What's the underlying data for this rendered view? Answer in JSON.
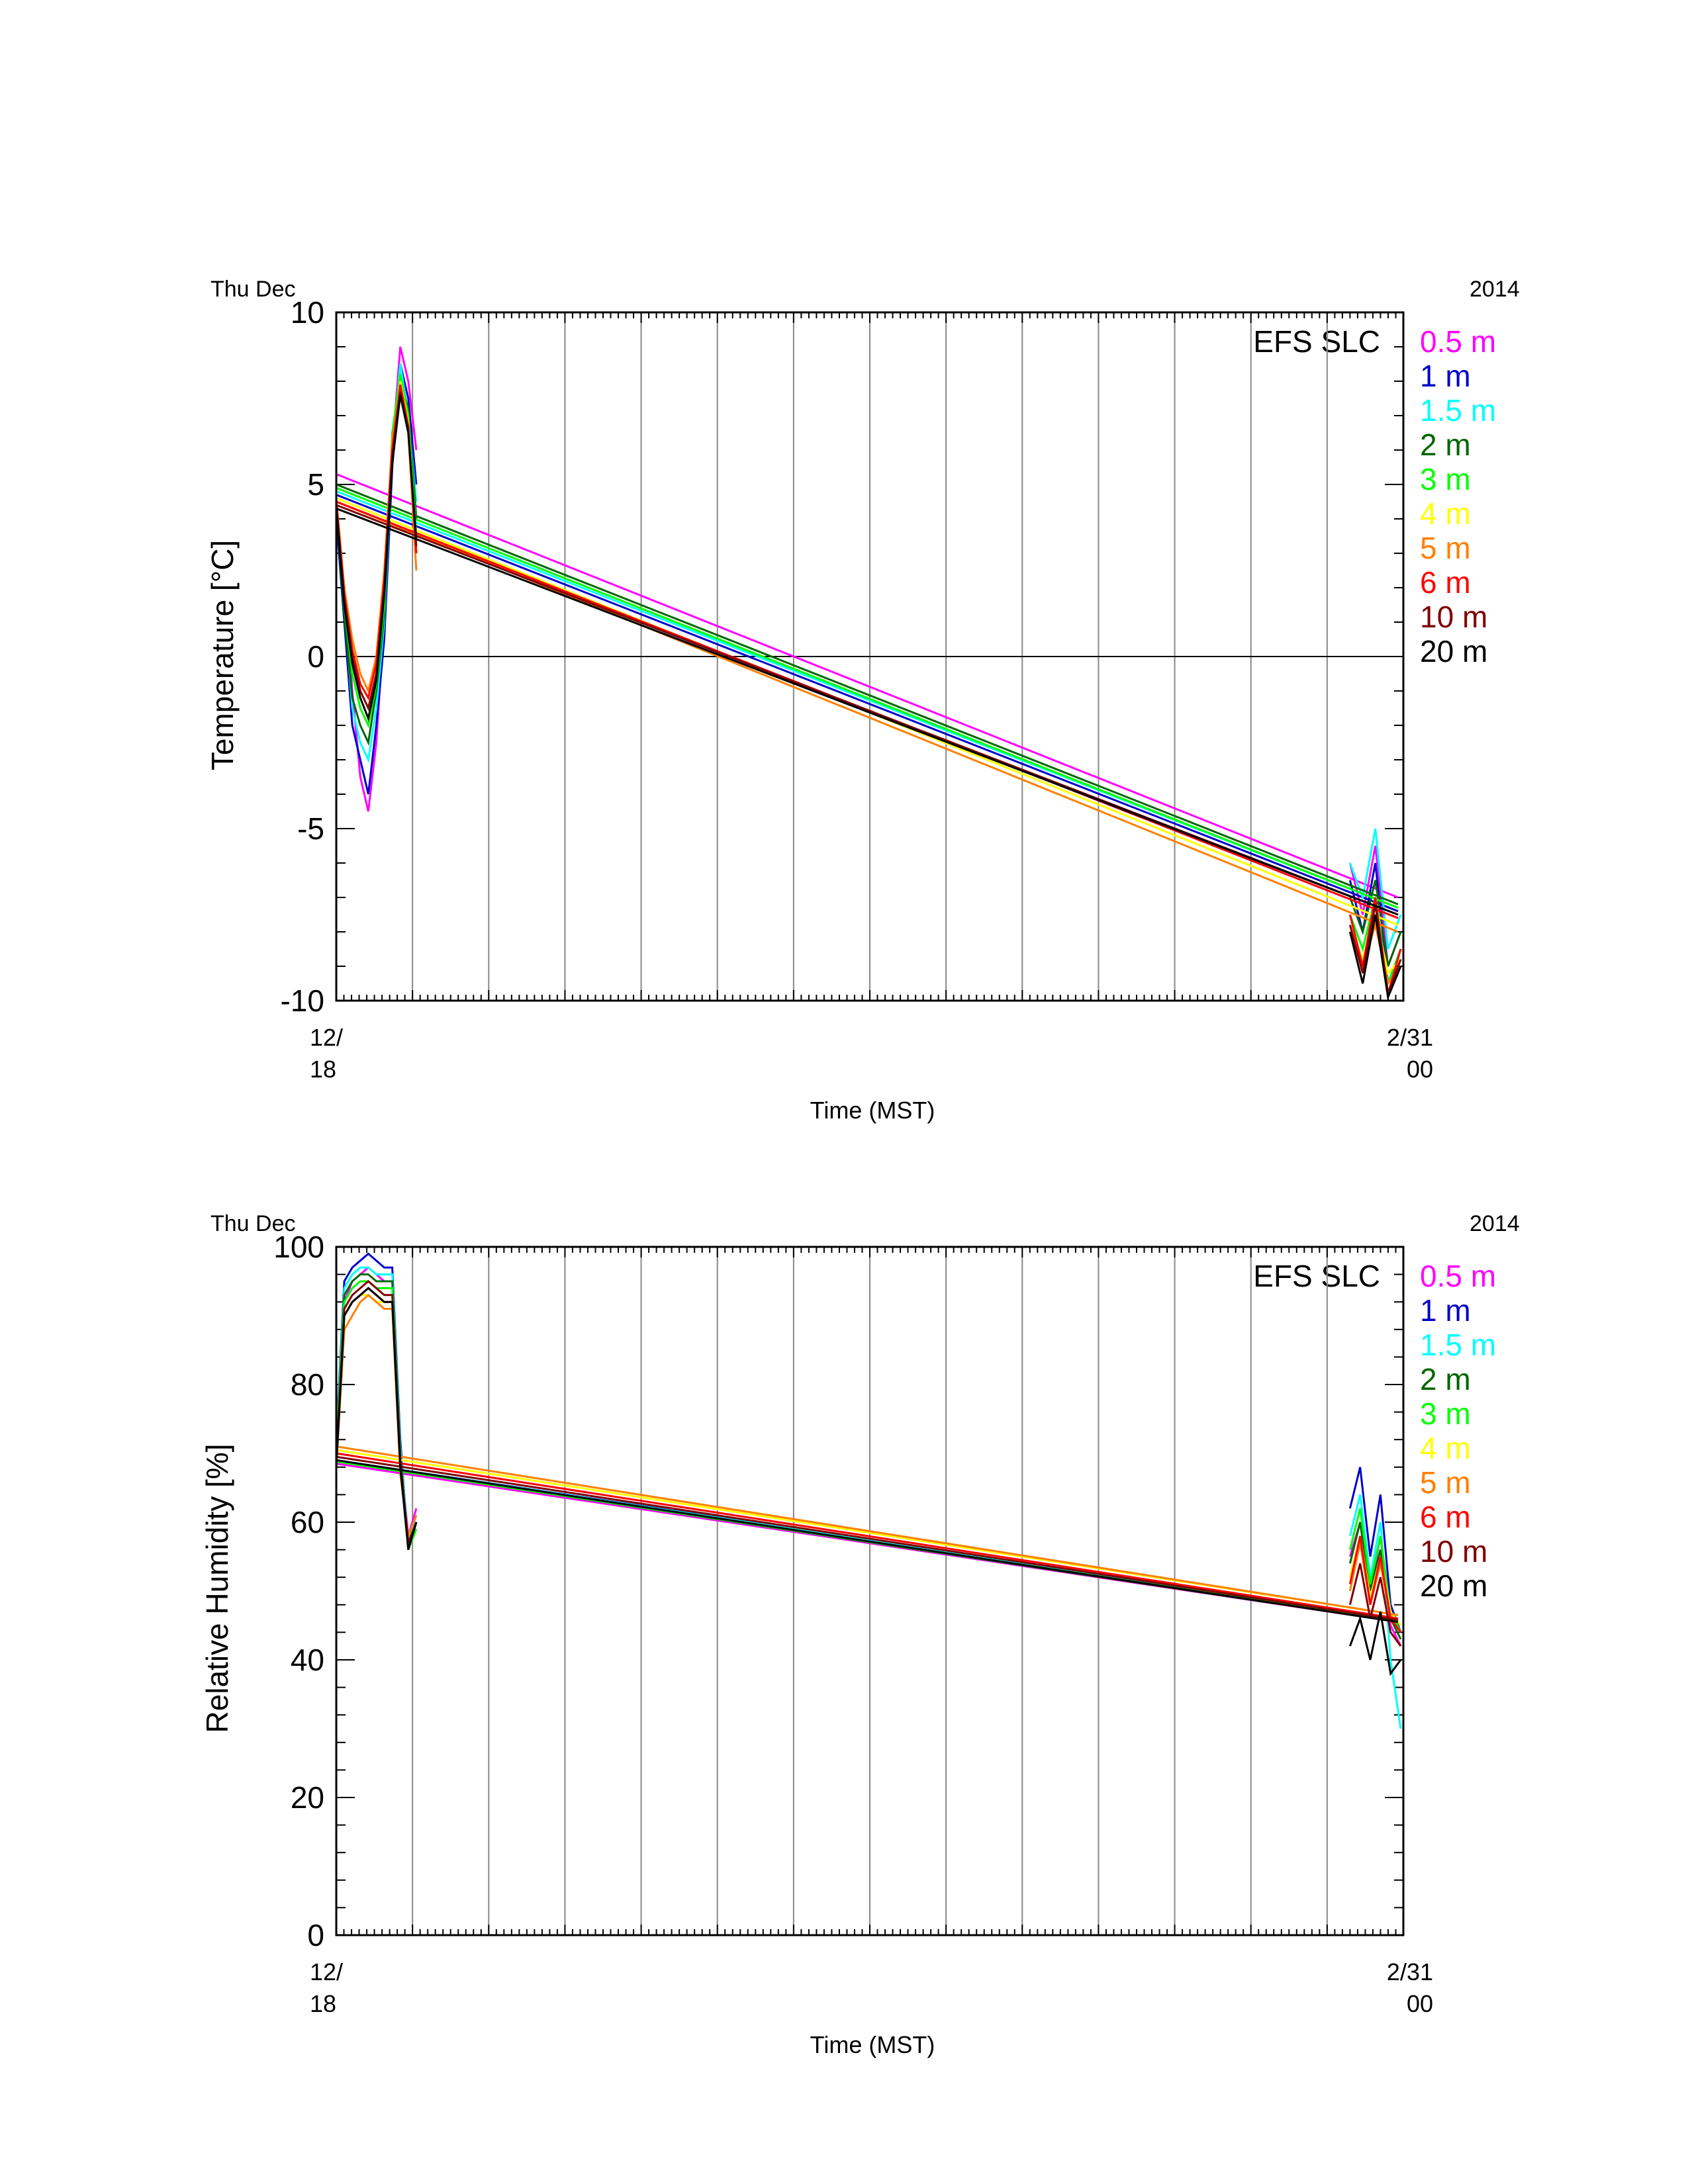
{
  "legend": {
    "station": "EFS SLC",
    "heights": [
      "0.5 m",
      "1 m",
      "1.5 m",
      "2 m",
      "3 m",
      "4 m",
      "5 m",
      "6 m",
      "10 m",
      "20 m"
    ],
    "colors": [
      "#ff00ff",
      "#0000cc",
      "#00ffff",
      "#006600",
      "#00ff00",
      "#ffff00",
      "#ff8000",
      "#ff0000",
      "#800000",
      "#000000"
    ]
  },
  "top_axis": {
    "start_label": "Thu Dec",
    "end_label": "2014"
  },
  "bottom_ticks": {
    "first_date": "12/",
    "first_time": "18",
    "last_date": "2/31",
    "last_time": "00"
  },
  "chart_data": [
    {
      "type": "line",
      "ylabel": "Temperature [°C]",
      "xlabel": "Time (MST)",
      "ylim": [
        -10,
        10
      ],
      "yticks": [
        -10,
        -5,
        0,
        5,
        10
      ],
      "zero_line": true,
      "grid": "vertical",
      "series": [
        {
          "name": "0.5 m",
          "gap": [
            5.3,
            -7.0
          ],
          "early": [
            4.5,
            2.0,
            -1.0,
            -3.5,
            -4.5,
            -2.5,
            1.0,
            6.0,
            9.0,
            8.0,
            6.0
          ],
          "late": [
            -6.0,
            -7.5,
            -5.5,
            -9.0,
            -8.0
          ]
        },
        {
          "name": "1 m",
          "gap": [
            4.7,
            -7.4
          ],
          "early": [
            4.0,
            1.0,
            -2.0,
            -3.0,
            -4.0,
            -2.0,
            0.5,
            5.5,
            8.5,
            7.5,
            5.0
          ],
          "late": [
            -6.5,
            -8.0,
            -6.0,
            -9.5,
            -8.5
          ]
        },
        {
          "name": "1.5 m",
          "gap": [
            4.8,
            -7.3
          ],
          "early": [
            4.2,
            1.5,
            -1.5,
            -2.5,
            -3.0,
            -1.5,
            1.0,
            6.0,
            8.5,
            7.0,
            4.5
          ],
          "late": [
            -6.0,
            -7.0,
            -5.0,
            -8.5,
            -7.5
          ]
        },
        {
          "name": "2 m",
          "gap": [
            5.0,
            -7.2
          ],
          "early": [
            4.3,
            1.2,
            -1.2,
            -2.0,
            -2.5,
            -1.0,
            1.2,
            6.2,
            8.0,
            7.2,
            4.0
          ],
          "late": [
            -7.0,
            -8.0,
            -6.5,
            -9.0,
            -8.0
          ]
        },
        {
          "name": "3 m",
          "gap": [
            4.9,
            -7.3
          ],
          "early": [
            4.4,
            1.5,
            -0.5,
            -1.5,
            -2.0,
            -0.8,
            1.5,
            6.5,
            8.2,
            7.0,
            3.5
          ],
          "late": [
            -7.5,
            -8.5,
            -7.0,
            -9.5,
            -8.5
          ]
        },
        {
          "name": "4 m",
          "gap": [
            4.6,
            -7.8
          ],
          "early": [
            4.5,
            1.8,
            0.0,
            -1.0,
            -1.5,
            -0.5,
            2.0,
            6.0,
            8.0,
            6.8,
            3.0
          ],
          "late": [
            -7.8,
            -8.8,
            -7.5,
            -9.2,
            -8.8
          ]
        },
        {
          "name": "5 m",
          "gap": [
            4.5,
            -8.0
          ],
          "early": [
            4.6,
            2.0,
            0.5,
            -0.5,
            -1.0,
            0.0,
            2.5,
            6.3,
            7.8,
            6.5,
            2.5
          ],
          "late": [
            -8.0,
            -9.0,
            -7.8,
            -9.5,
            -9.0
          ]
        },
        {
          "name": "6 m",
          "gap": [
            4.5,
            -7.6
          ],
          "early": [
            4.5,
            1.8,
            0.2,
            -0.8,
            -1.2,
            -0.2,
            2.2,
            6.0,
            7.9,
            6.7,
            3.0
          ],
          "late": [
            -7.5,
            -9.0,
            -7.0,
            -9.8,
            -8.5
          ]
        },
        {
          "name": "10 m",
          "gap": [
            4.4,
            -7.5
          ],
          "early": [
            4.4,
            1.7,
            0.0,
            -1.0,
            -1.5,
            -0.5,
            2.0,
            5.8,
            7.7,
            6.6,
            3.2
          ],
          "late": [
            -7.8,
            -9.2,
            -7.2,
            -9.8,
            -8.8
          ]
        },
        {
          "name": "20 m",
          "gap": [
            4.3,
            -7.5
          ],
          "early": [
            4.3,
            1.5,
            -0.2,
            -1.2,
            -1.8,
            -0.7,
            1.8,
            5.6,
            7.6,
            6.5,
            3.4
          ],
          "late": [
            -8.0,
            -9.5,
            -7.5,
            -9.9,
            -9.0
          ]
        }
      ]
    },
    {
      "type": "line",
      "ylabel": "Relative Humidity [%]",
      "xlabel": "Time (MST)",
      "ylim": [
        0,
        100
      ],
      "yticks": [
        0,
        20,
        40,
        60,
        80,
        100
      ],
      "zero_line": false,
      "grid": "vertical",
      "series": [
        {
          "name": "0.5 m",
          "gap": [
            68.5,
            45.5
          ],
          "early": [
            70,
            92,
            95,
            96,
            97,
            96,
            95,
            95,
            70,
            58,
            62
          ],
          "late": [
            55,
            60,
            50,
            58,
            45,
            42
          ]
        },
        {
          "name": "1 m",
          "gap": [
            69.0,
            46.0
          ],
          "early": [
            72,
            95,
            97,
            98,
            99,
            98,
            97,
            97,
            72,
            56,
            60
          ],
          "late": [
            62,
            68,
            55,
            64,
            48,
            44
          ]
        },
        {
          "name": "1.5 m",
          "gap": [
            69.0,
            45.8
          ],
          "early": [
            71,
            94,
            96,
            97,
            97,
            96,
            96,
            96,
            71,
            57,
            61
          ],
          "late": [
            58,
            64,
            52,
            60,
            40,
            30
          ]
        },
        {
          "name": "2 m",
          "gap": [
            68.8,
            45.5
          ],
          "early": [
            70,
            93,
            95,
            96,
            96,
            95,
            95,
            95,
            70,
            56,
            60
          ],
          "late": [
            54,
            60,
            50,
            56,
            46,
            43
          ]
        },
        {
          "name": "3 m",
          "gap": [
            68.8,
            45.6
          ],
          "early": [
            70,
            92,
            94,
            95,
            95,
            94,
            94,
            94,
            69,
            56,
            59
          ],
          "late": [
            56,
            62,
            51,
            58,
            47,
            44
          ]
        },
        {
          "name": "4 m",
          "gap": [
            70.5,
            46.5
          ],
          "early": [
            69,
            90,
            92,
            93,
            93,
            92,
            92,
            92,
            68,
            57,
            60
          ],
          "late": [
            52,
            58,
            49,
            55,
            47,
            45
          ]
        },
        {
          "name": "5 m",
          "gap": [
            71.0,
            46.5
          ],
          "early": [
            68,
            88,
            90,
            92,
            93,
            92,
            91,
            91,
            67,
            58,
            61
          ],
          "late": [
            50,
            57,
            48,
            54,
            46,
            44
          ]
        },
        {
          "name": "6 m",
          "gap": [
            70.0,
            46.0
          ],
          "early": [
            69,
            90,
            92,
            93,
            94,
            93,
            92,
            92,
            68,
            57,
            60
          ],
          "late": [
            51,
            58,
            48,
            55,
            46,
            44
          ]
        },
        {
          "name": "10 m",
          "gap": [
            69.5,
            45.8
          ],
          "early": [
            69,
            91,
            93,
            94,
            95,
            94,
            93,
            93,
            69,
            57,
            60
          ],
          "late": [
            48,
            54,
            46,
            52,
            44,
            42
          ]
        },
        {
          "name": "20 m",
          "gap": [
            69.0,
            45.5
          ],
          "early": [
            68,
            90,
            92,
            93,
            94,
            93,
            92,
            92,
            68,
            56,
            60
          ],
          "late": [
            42,
            46,
            40,
            47,
            38,
            40
          ]
        }
      ]
    }
  ]
}
